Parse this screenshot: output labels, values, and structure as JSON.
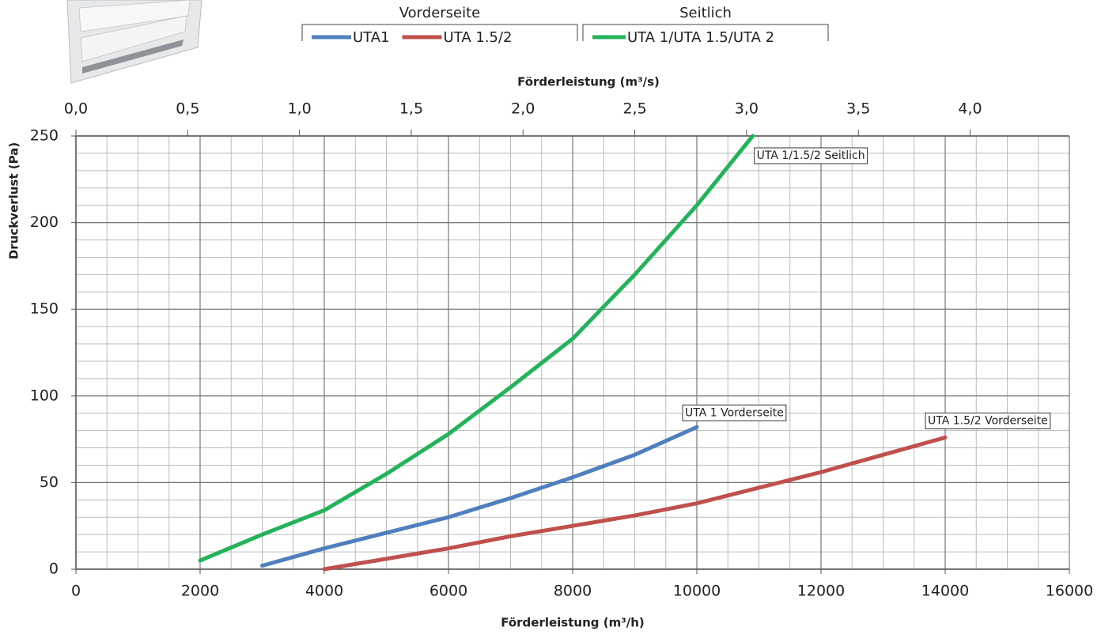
{
  "chart_data": {
    "type": "line",
    "xlabel": "Förderleistung (m³/h)",
    "x2label": "Förderleistung (m³/s)",
    "ylabel": "Druckverlust (Pa)",
    "xlim": [
      0,
      16000
    ],
    "xticks": [
      0,
      2000,
      4000,
      6000,
      8000,
      10000,
      12000,
      14000,
      16000
    ],
    "x2lim": [
      0,
      4.444
    ],
    "x2ticks": [
      {
        "value": 0,
        "label": "0,0"
      },
      {
        "value": 0.5,
        "label": "0,5"
      },
      {
        "value": 1,
        "label": "1,0"
      },
      {
        "value": 1.5,
        "label": "1,5"
      },
      {
        "value": 2,
        "label": "2,0"
      },
      {
        "value": 2.5,
        "label": "2,5"
      },
      {
        "value": 3,
        "label": "3,0"
      },
      {
        "value": 3.5,
        "label": "3,5"
      },
      {
        "value": 4,
        "label": "4,0"
      }
    ],
    "ylim": [
      0,
      250
    ],
    "yticks": [
      0,
      50,
      100,
      150,
      200,
      250
    ],
    "grid": true,
    "minor_grid": {
      "x": 500,
      "y": 10
    },
    "series": [
      {
        "name": "UTA1",
        "group": "Vorderseite",
        "label": "UTA 1 Vorderseite",
        "color": "#4f7fbd",
        "x": [
          3000,
          4000,
          5000,
          6000,
          7000,
          8000,
          9000,
          10000
        ],
        "values": [
          2,
          12,
          21,
          30,
          41,
          53,
          66,
          82
        ]
      },
      {
        "name": "UTA 1.5/2",
        "group": "Vorderseite",
        "label": "UTA 1.5/2 Vorderseite",
        "color": "#c0504d",
        "x": [
          4000,
          5000,
          6000,
          7000,
          8000,
          9000,
          10000,
          11000,
          12000,
          13000,
          14000
        ],
        "values": [
          0,
          6,
          12,
          19,
          25,
          31,
          38,
          47,
          56,
          66,
          76
        ]
      },
      {
        "name": "UTA 1/UTA 1.5/UTA 2",
        "group": "Seitlich",
        "label": "UTA 1/1.5/2 Seitlich",
        "color": "#23b35a",
        "x": [
          2000,
          3000,
          4000,
          5000,
          6000,
          7000,
          8000,
          9000,
          10000,
          10900
        ],
        "values": [
          5,
          20,
          34,
          55,
          78,
          105,
          133,
          170,
          210,
          250
        ]
      }
    ]
  }
}
